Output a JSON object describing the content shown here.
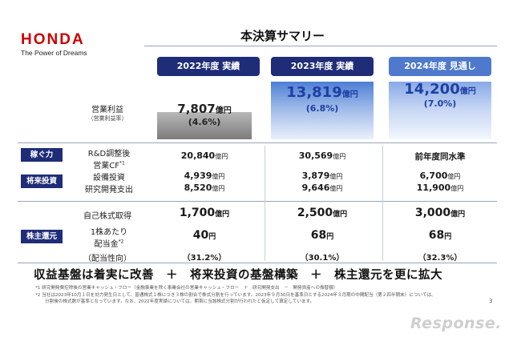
{
  "logo": {
    "name": "HONDA",
    "tagline": "The Power of Dreams"
  },
  "title": "本決算サマリー",
  "columns": [
    "2022年度 実績",
    "2023年度 実績",
    "2024年度 見通し"
  ],
  "operating_profit": {
    "label": "営業利益",
    "sublabel": "（営業利益率）",
    "values": [
      "7,807",
      "13,819",
      "14,200"
    ],
    "unit": "億円",
    "rates": [
      "(4.6%)",
      "(6.8%)",
      "(7.0%)"
    ]
  },
  "earning": {
    "badge": "稼ぐ力",
    "label_line1": "R&D調整後",
    "label_line2": "営業CF",
    "note_mark": "*1",
    "values": [
      "20,840",
      "30,569"
    ],
    "unit": "億円",
    "value_2024": "前年度同水準"
  },
  "investment": {
    "badge": "将来投資",
    "capex_label": "設備投資",
    "rnd_label": "研究開発支出",
    "capex": [
      "4,939",
      "3,879",
      "6,700"
    ],
    "rnd": [
      "8,520",
      "9,646",
      "11,900"
    ],
    "unit": "億円"
  },
  "shareholder": {
    "badge": "株主還元",
    "buyback_label": "自己株式取得",
    "buyback": [
      "1,700",
      "2,500",
      "3,000"
    ],
    "buyback_unit": "億円",
    "dividend_label_line1": "1株あたり",
    "dividend_label_line2": "配当金",
    "note_mark": "*2",
    "dividend": [
      "40",
      "68",
      "68"
    ],
    "dividend_unit": "円",
    "payout_label": "（配当性向）",
    "payout": [
      "（31.2%）",
      "（30.1%）",
      "（32.3%）"
    ]
  },
  "tagline": "収益基盤は着実に改善　＋　将来投資の基盤構築　＋　株主還元を更に拡大",
  "footnotes": [
    "*1  研究開発費控除後の営業キャッシュ・フロー（金融事業を除く事業会社の営業キャッシュ・フロー　＋　研究開発支出　－　開発資産への振替額）",
    "*2  当社は2023年10月１日を効力発生日として、普通株式１株につき３株の割合で株式分割を行っています。2023年９月30日を基準日とする2024年３月期の中間配当（第２四半期末）については、",
    "分割後の株式数が基準となっています。なお、2022年度実績については、期首に当該株式分割が行われたと仮定して算定しています。"
  ],
  "page_number": "3",
  "watermark": "Response."
}
